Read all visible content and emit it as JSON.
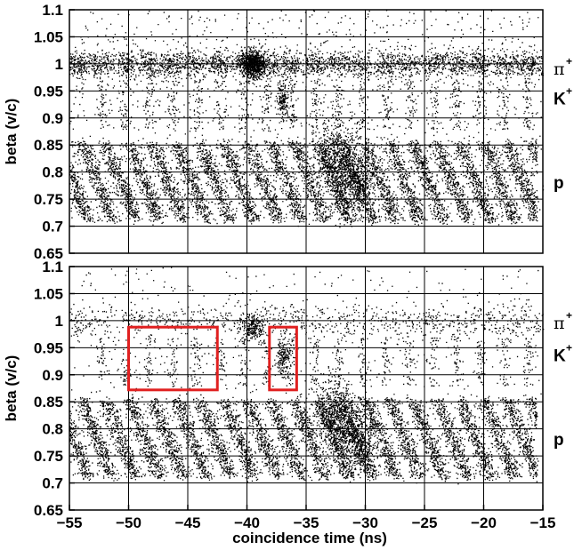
{
  "chart_data": [
    {
      "type": "scatter",
      "title": "",
      "xlabel": "",
      "ylabel": "beta (v/c)",
      "xlim": [
        -55,
        -15
      ],
      "ylim": [
        0.65,
        1.1
      ],
      "y_ticks": [
        "1.1",
        "1.05",
        "1",
        "0.95",
        "0.9",
        "0.85",
        "0.8",
        "0.75",
        "0.7",
        "0.65"
      ],
      "grid": true,
      "particle_labels": [
        {
          "id": "pi",
          "base": "π",
          "sup": "+",
          "beta": 0.99
        },
        {
          "id": "k",
          "base": "K",
          "sup": "+",
          "beta": 0.935
        },
        {
          "id": "p",
          "base": "p",
          "sup": "",
          "beta": 0.78
        }
      ],
      "bands": [
        {
          "name": "π+",
          "beta_center": 1.0,
          "beta_spread": 0.012,
          "x_start": -55,
          "x_end": -15
        },
        {
          "name": "K+",
          "beta_range": [
            0.88,
            0.97
          ],
          "period_ns": 2.0,
          "x_start": -53,
          "x_end": -16
        },
        {
          "name": "p",
          "beta_range": [
            0.71,
            0.855
          ],
          "period_ns": 2.0,
          "x_start": -55,
          "x_end": -15.5
        }
      ],
      "hotspots": [
        {
          "x": -39.5,
          "y": 1.0,
          "label": "pi-cluster"
        },
        {
          "x": -37.0,
          "y": 0.935,
          "label": "k-cluster"
        },
        {
          "x": -32.5,
          "y": 0.83,
          "label": "p-cluster-1"
        },
        {
          "x": -31.0,
          "y": 0.78,
          "label": "p-cluster-2"
        }
      ],
      "boxes": []
    },
    {
      "type": "scatter",
      "title": "",
      "xlabel": "coincidence time (ns)",
      "ylabel": "beta (v/c)",
      "xlim": [
        -55,
        -15
      ],
      "ylim": [
        0.65,
        1.1
      ],
      "x_ticks": [
        "−55",
        "−50",
        "−45",
        "−40",
        "−35",
        "−30",
        "−25",
        "−20",
        "−15"
      ],
      "y_ticks": [
        "1.1",
        "1.05",
        "1",
        "0.95",
        "0.9",
        "0.85",
        "0.8",
        "0.75",
        "0.7",
        "0.65"
      ],
      "grid": true,
      "particle_labels": [
        {
          "id": "pi",
          "base": "π",
          "sup": "+",
          "beta": 0.995
        },
        {
          "id": "k",
          "base": "K",
          "sup": "+",
          "beta": 0.935
        },
        {
          "id": "p",
          "base": "p",
          "sup": "",
          "beta": 0.78
        }
      ],
      "bands": [
        {
          "name": "π+",
          "beta_center": 1.0,
          "beta_spread": 0.015,
          "x_start": -55,
          "x_end": -15,
          "sparse": true
        },
        {
          "name": "K+",
          "beta_range": [
            0.88,
            0.97
          ],
          "period_ns": 2.0,
          "x_start": -53,
          "x_end": -16
        },
        {
          "name": "p",
          "beta_range": [
            0.71,
            0.855
          ],
          "period_ns": 2.0,
          "x_start": -55,
          "x_end": -15.5
        }
      ],
      "hotspots": [
        {
          "x": -39.5,
          "y": 0.99,
          "label": "pi-cluster"
        },
        {
          "x": -37.0,
          "y": 0.935,
          "label": "k-cluster"
        },
        {
          "x": -32.5,
          "y": 0.83,
          "label": "p-cluster-1"
        },
        {
          "x": -31.0,
          "y": 0.78,
          "label": "p-cluster-2"
        }
      ],
      "boxes": [
        {
          "x0": -50,
          "x1": -42.5,
          "y0": 0.872,
          "y1": 0.988,
          "color": "#e02020"
        },
        {
          "x0": -38.1,
          "x1": -35.8,
          "y0": 0.872,
          "y1": 0.988,
          "color": "#e02020"
        }
      ]
    }
  ]
}
